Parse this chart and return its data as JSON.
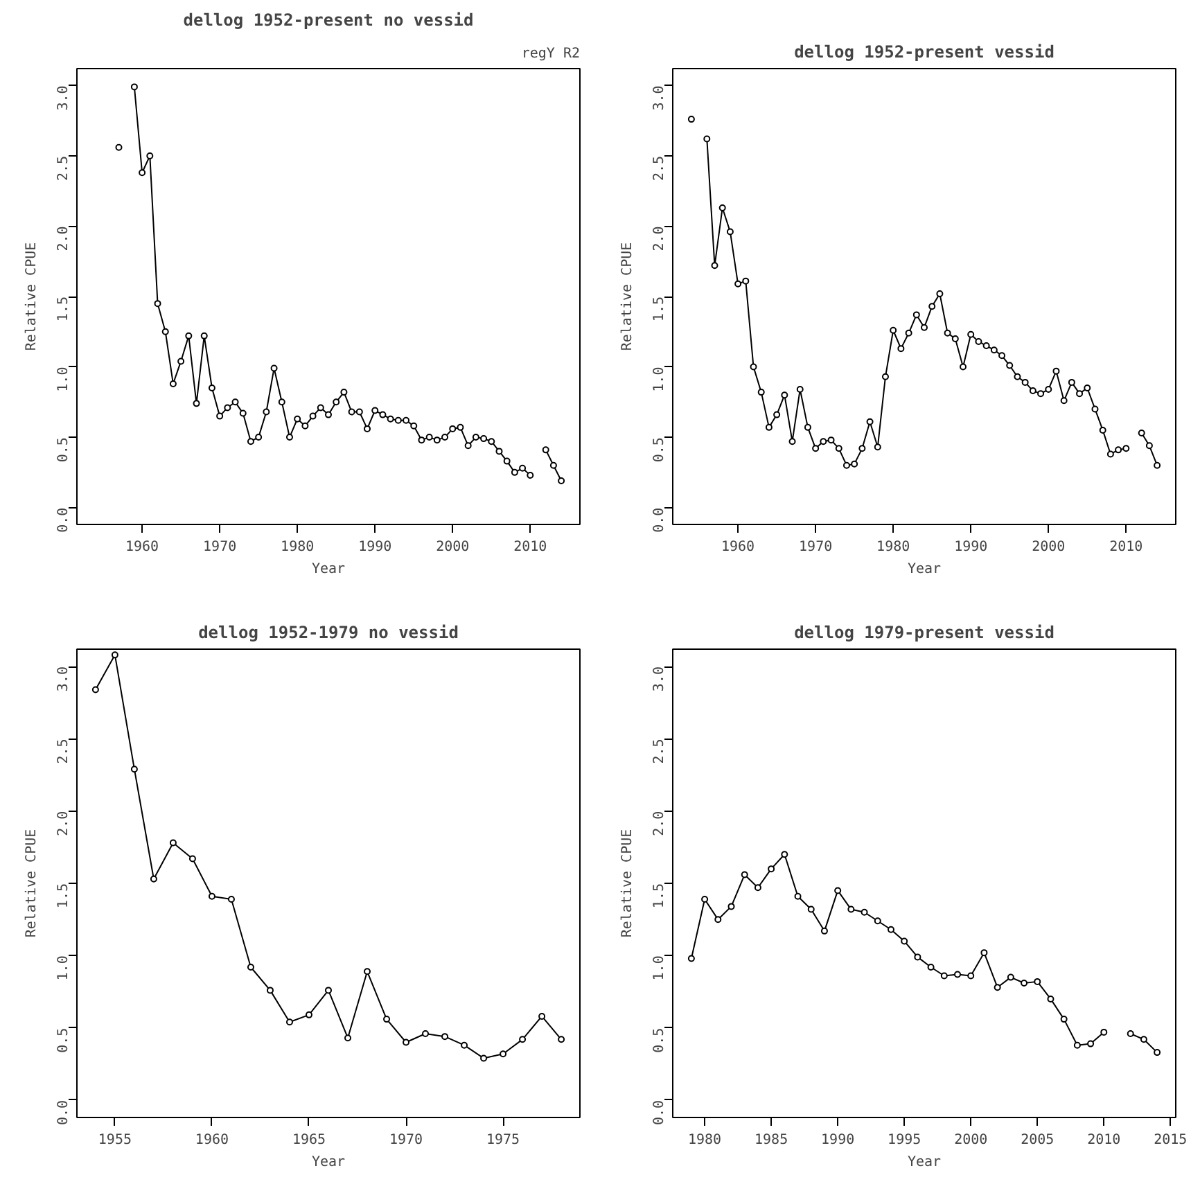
{
  "chart_data": [
    {
      "type": "line",
      "title": "dellog 1952-present no vessid",
      "xlabel": "Year",
      "ylabel": "Relative CPUE",
      "annotations": [
        "regY R2"
      ],
      "marker": "circle",
      "line_style": "solid",
      "grid": false,
      "xlim": [
        1951.6,
        2016.4
      ],
      "ylim": [
        -0.12,
        3.12
      ],
      "xticks": [
        1960,
        1970,
        1980,
        1990,
        2000,
        2010
      ],
      "yticks": [
        {
          "value": 0,
          "label": "0.0"
        },
        {
          "value": 0.5,
          "label": "0.5"
        },
        {
          "value": 1,
          "label": "1.0"
        },
        {
          "value": 1.5,
          "label": "1.5"
        },
        {
          "value": 2,
          "label": "2.0"
        },
        {
          "value": 2.5,
          "label": "2.5"
        },
        {
          "value": 3,
          "label": "3.0"
        }
      ],
      "x": [
        1957,
        1958,
        1959,
        1960,
        1961,
        1962,
        1963,
        1964,
        1965,
        1966,
        1967,
        1968,
        1969,
        1970,
        1971,
        1972,
        1973,
        1974,
        1975,
        1976,
        1977,
        1978,
        1979,
        1980,
        1981,
        1982,
        1983,
        1984,
        1985,
        1986,
        1987,
        1988,
        1989,
        1990,
        1991,
        1992,
        1993,
        1994,
        1995,
        1996,
        1997,
        1998,
        1999,
        2000,
        2001,
        2002,
        2003,
        2004,
        2005,
        2006,
        2007,
        2008,
        2009,
        2010,
        2011,
        2012,
        2013,
        2014
      ],
      "series": [
        {
          "color": "#000000",
          "values": [
            2.56,
            null,
            2.99,
            2.38,
            2.5,
            1.45,
            1.25,
            0.88,
            1.04,
            1.22,
            0.74,
            1.22,
            0.85,
            0.65,
            0.71,
            0.75,
            0.67,
            0.47,
            0.5,
            0.68,
            0.99,
            0.75,
            0.5,
            0.63,
            0.58,
            0.65,
            0.71,
            0.66,
            0.75,
            0.82,
            0.68,
            0.68,
            0.56,
            0.69,
            0.66,
            0.63,
            0.62,
            0.62,
            0.58,
            0.48,
            0.5,
            0.48,
            0.5,
            0.56,
            0.57,
            0.44,
            0.5,
            0.49,
            0.47,
            0.4,
            0.33,
            0.25,
            0.28,
            0.23,
            null,
            0.41,
            0.3,
            0.19
          ]
        }
      ]
    },
    {
      "type": "line",
      "title": "dellog 1952-present vessid",
      "xlabel": "Year",
      "ylabel": "Relative CPUE",
      "marker": "circle",
      "line_style": "solid",
      "grid": false,
      "xlim": [
        1951.6,
        2016.4
      ],
      "ylim": [
        -0.12,
        3.12
      ],
      "xticks": [
        1960,
        1970,
        1980,
        1990,
        2000,
        2010
      ],
      "yticks": [
        {
          "value": 0,
          "label": "0.0"
        },
        {
          "value": 0.5,
          "label": "0.5"
        },
        {
          "value": 1,
          "label": "1.0"
        },
        {
          "value": 1.5,
          "label": "1.5"
        },
        {
          "value": 2,
          "label": "2.0"
        },
        {
          "value": 2.5,
          "label": "2.5"
        },
        {
          "value": 3,
          "label": "3.0"
        }
      ],
      "x": [
        1954,
        1955,
        1956,
        1957,
        1958,
        1959,
        1960,
        1961,
        1962,
        1963,
        1964,
        1965,
        1966,
        1967,
        1968,
        1969,
        1970,
        1971,
        1972,
        1973,
        1974,
        1975,
        1976,
        1977,
        1978,
        1979,
        1980,
        1981,
        1982,
        1983,
        1984,
        1985,
        1986,
        1987,
        1988,
        1989,
        1990,
        1991,
        1992,
        1993,
        1994,
        1995,
        1996,
        1997,
        1998,
        1999,
        2000,
        2001,
        2002,
        2003,
        2004,
        2005,
        2006,
        2007,
        2008,
        2009,
        2010,
        2011,
        2012,
        2013,
        2014
      ],
      "series": [
        {
          "color": "#000000",
          "values": [
            2.76,
            null,
            2.62,
            1.72,
            2.13,
            1.96,
            1.59,
            1.61,
            1.0,
            0.82,
            0.57,
            0.66,
            0.8,
            0.47,
            0.84,
            0.57,
            0.42,
            0.47,
            0.48,
            0.42,
            0.3,
            0.31,
            0.42,
            0.61,
            0.43,
            0.93,
            1.26,
            1.13,
            1.24,
            1.37,
            1.28,
            1.43,
            1.52,
            1.24,
            1.2,
            1.0,
            1.23,
            1.18,
            1.15,
            1.12,
            1.08,
            1.01,
            0.93,
            0.89,
            0.83,
            0.81,
            0.84,
            0.97,
            0.76,
            0.89,
            0.81,
            0.85,
            0.7,
            0.55,
            0.38,
            0.41,
            0.42,
            null,
            0.53,
            0.44,
            0.3
          ]
        }
      ]
    },
    {
      "type": "line",
      "title": "dellog 1952-1979 no vessid",
      "xlabel": "Year",
      "ylabel": "Relative CPUE",
      "marker": "circle",
      "line_style": "solid",
      "grid": false,
      "xlim": [
        1953.04,
        1978.96
      ],
      "ylim": [
        -0.12,
        3.12
      ],
      "xticks": [
        1955,
        1960,
        1965,
        1970,
        1975
      ],
      "yticks": [
        {
          "value": 0,
          "label": "0.0"
        },
        {
          "value": 0.5,
          "label": "0.5"
        },
        {
          "value": 1,
          "label": "1.0"
        },
        {
          "value": 1.5,
          "label": "1.5"
        },
        {
          "value": 2,
          "label": "2.0"
        },
        {
          "value": 2.5,
          "label": "2.5"
        },
        {
          "value": 3,
          "label": "3.0"
        }
      ],
      "x": [
        1954,
        1955,
        1956,
        1957,
        1958,
        1959,
        1960,
        1961,
        1962,
        1963,
        1964,
        1965,
        1966,
        1967,
        1968,
        1969,
        1970,
        1971,
        1972,
        1973,
        1974,
        1975,
        1976,
        1977,
        1978
      ],
      "series": [
        {
          "color": "#000000",
          "values": [
            2.84,
            3.08,
            2.29,
            1.53,
            1.78,
            1.67,
            1.41,
            1.39,
            0.92,
            0.76,
            0.54,
            0.59,
            0.76,
            0.43,
            0.89,
            0.56,
            0.4,
            0.46,
            0.44,
            0.38,
            0.29,
            0.32,
            0.42,
            0.58,
            0.42
          ]
        }
      ]
    },
    {
      "type": "line",
      "title": "dellog 1979-present vessid",
      "xlabel": "Year",
      "ylabel": "Relative CPUE",
      "marker": "circle",
      "line_style": "solid",
      "grid": false,
      "xlim": [
        1977.6,
        2015.4
      ],
      "ylim": [
        -0.12,
        3.12
      ],
      "xticks": [
        1980,
        1985,
        1990,
        1995,
        2000,
        2005,
        2010,
        2015
      ],
      "yticks": [
        {
          "value": 0,
          "label": "0.0"
        },
        {
          "value": 0.5,
          "label": "0.5"
        },
        {
          "value": 1,
          "label": "1.0"
        },
        {
          "value": 1.5,
          "label": "1.5"
        },
        {
          "value": 2,
          "label": "2.0"
        },
        {
          "value": 2.5,
          "label": "2.5"
        },
        {
          "value": 3,
          "label": "3.0"
        }
      ],
      "x": [
        1979,
        1980,
        1981,
        1982,
        1983,
        1984,
        1985,
        1986,
        1987,
        1988,
        1989,
        1990,
        1991,
        1992,
        1993,
        1994,
        1995,
        1996,
        1997,
        1998,
        1999,
        2000,
        2001,
        2002,
        2003,
        2004,
        2005,
        2006,
        2007,
        2008,
        2009,
        2010,
        2011,
        2012,
        2013,
        2014
      ],
      "series": [
        {
          "color": "#000000",
          "values": [
            0.98,
            1.39,
            1.25,
            1.34,
            1.56,
            1.47,
            1.6,
            1.7,
            1.41,
            1.32,
            1.17,
            1.45,
            1.32,
            1.3,
            1.24,
            1.18,
            1.1,
            0.99,
            0.92,
            0.86,
            0.87,
            0.86,
            1.02,
            0.78,
            0.85,
            0.81,
            0.82,
            0.7,
            0.56,
            0.38,
            0.39,
            0.47,
            null,
            0.46,
            0.42,
            0.33
          ]
        }
      ]
    }
  ]
}
